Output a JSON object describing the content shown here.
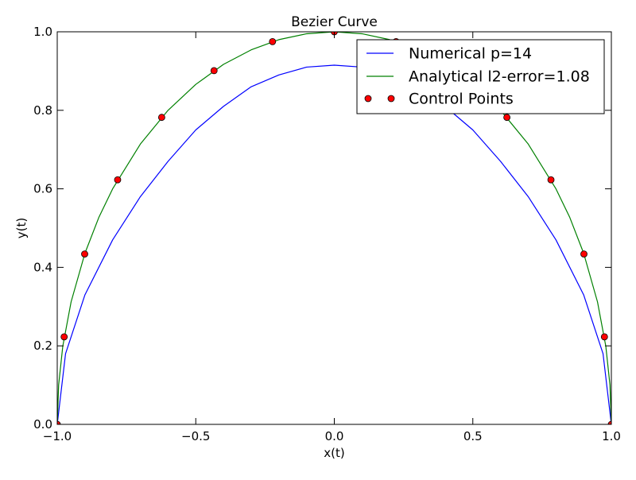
{
  "chart_data": {
    "type": "line",
    "title": "Bezier Curve",
    "xlabel": "x(t)",
    "ylabel": "y(t)",
    "xlim": [
      -1.0,
      1.0
    ],
    "ylim": [
      0.0,
      1.0
    ],
    "x_ticks": [
      -1.0,
      -0.5,
      0.0,
      0.5,
      1.0
    ],
    "x_tick_labels": [
      "−1.0",
      "−0.5",
      "0.0",
      "0.5",
      "1.0"
    ],
    "y_ticks": [
      0.0,
      0.2,
      0.4,
      0.6,
      0.8,
      1.0
    ],
    "y_tick_labels": [
      "0.0",
      "0.2",
      "0.4",
      "0.6",
      "0.8",
      "1.0"
    ],
    "grid": false,
    "legend_position": "top-right",
    "series": [
      {
        "name": "Numerical p=14",
        "kind": "line",
        "color": "#0000ff",
        "x": [
          -1.0,
          -0.97,
          -0.9,
          -0.8,
          -0.7,
          -0.6,
          -0.5,
          -0.4,
          -0.3,
          -0.2,
          -0.1,
          0.0,
          0.1,
          0.2,
          0.3,
          0.4,
          0.5,
          0.6,
          0.7,
          0.8,
          0.9,
          0.97,
          1.0
        ],
        "y": [
          0.0,
          0.18,
          0.33,
          0.47,
          0.58,
          0.67,
          0.75,
          0.81,
          0.86,
          0.89,
          0.91,
          0.915,
          0.91,
          0.89,
          0.86,
          0.81,
          0.75,
          0.67,
          0.58,
          0.47,
          0.33,
          0.18,
          0.0
        ]
      },
      {
        "name": "Analytical l2-error=1.08",
        "kind": "line",
        "color": "#008000",
        "x": [
          -1.0,
          -0.995,
          -0.98,
          -0.95,
          -0.9,
          -0.85,
          -0.8,
          -0.7,
          -0.6,
          -0.5,
          -0.4,
          -0.3,
          -0.2,
          -0.1,
          0.0,
          0.1,
          0.2,
          0.3,
          0.4,
          0.5,
          0.6,
          0.7,
          0.8,
          0.85,
          0.9,
          0.95,
          0.98,
          0.995,
          1.0
        ],
        "y": [
          0.0,
          0.1,
          0.199,
          0.312,
          0.436,
          0.527,
          0.6,
          0.714,
          0.8,
          0.866,
          0.917,
          0.954,
          0.98,
          0.995,
          1.0,
          0.995,
          0.98,
          0.954,
          0.917,
          0.866,
          0.8,
          0.714,
          0.6,
          0.527,
          0.436,
          0.312,
          0.199,
          0.1,
          0.0
        ]
      },
      {
        "name": "Control Points",
        "kind": "markers",
        "color": "#ff0000",
        "x": [
          -1.0,
          -0.975,
          -0.901,
          -0.782,
          -0.623,
          -0.434,
          -0.223,
          0.0,
          0.223,
          0.434,
          0.623,
          0.782,
          0.901,
          0.975,
          1.0
        ],
        "y": [
          0.0,
          0.223,
          0.434,
          0.623,
          0.782,
          0.901,
          0.975,
          1.0,
          0.975,
          0.901,
          0.782,
          0.623,
          0.434,
          0.223,
          0.0
        ]
      }
    ]
  }
}
